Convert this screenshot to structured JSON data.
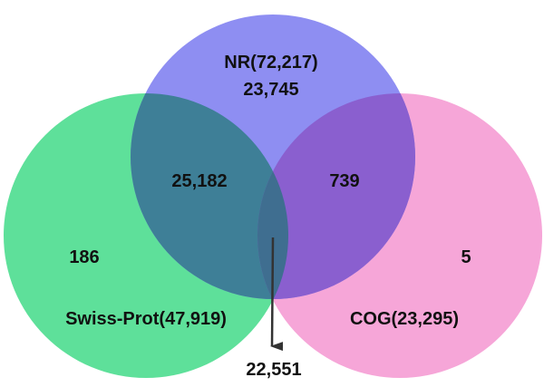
{
  "sets": {
    "swissprot": {
      "label": "Swiss-Prot(47,919)",
      "color": "#5EE09A"
    },
    "nr": {
      "label": "NR(72,217)",
      "color": "#8E8EF2"
    },
    "cog": {
      "label": "COG(23,295)",
      "color": "#F6A6D8"
    }
  },
  "regions": {
    "nr_only": "23,745",
    "swissprot_nr": "25,182",
    "nr_cog": "739",
    "swissprot_only": "186",
    "cog_only": "5",
    "all_three": "22,551"
  },
  "colors": {
    "swissprot_nr_overlap": "#3E7F97",
    "nr_cog_overlap": "#8A5FCF",
    "swissprot_cog_overlap": "#5A8A93",
    "center_overlap": "#3F6E90",
    "arrow": "#333333"
  }
}
